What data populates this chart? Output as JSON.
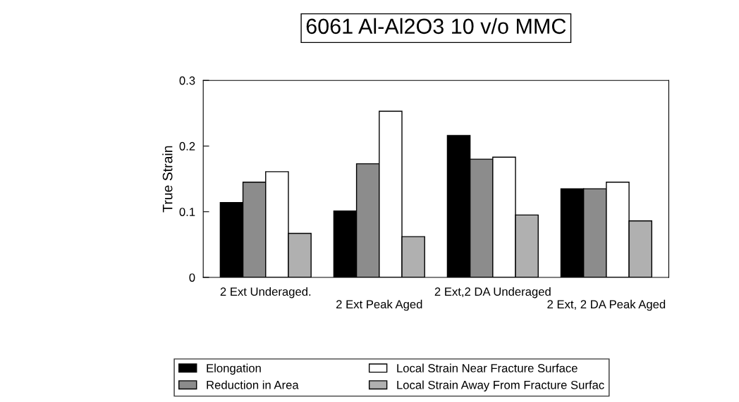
{
  "chart_data": {
    "type": "bar",
    "title": "6061 Al-Al2O3 10 v/o MMC",
    "ylabel": "True Strain",
    "categories": [
      "2 Ext Underaged.",
      "2 Ext Peak Aged",
      "2 Ext,2 DA Underaged",
      "2 Ext, 2 DA Peak Aged"
    ],
    "series": [
      {
        "name": "Elongation",
        "color": "#000000",
        "values": [
          0.114,
          0.101,
          0.216,
          0.135
        ]
      },
      {
        "name": "Reduction in Area",
        "color": "#8c8c8c",
        "values": [
          0.145,
          0.173,
          0.18,
          0.135
        ]
      },
      {
        "name": "Local Strain Near Fracture Surface",
        "color": "#ffffff",
        "values": [
          0.161,
          0.253,
          0.183,
          0.145
        ]
      },
      {
        "name": "Local Strain Away From Fracture Surfac",
        "color": "#b0b0b0",
        "values": [
          0.067,
          0.062,
          0.095,
          0.086
        ]
      }
    ],
    "ylim": [
      0,
      0.3
    ],
    "yticks": [
      0,
      0.1,
      0.2,
      0.3
    ],
    "grid": false,
    "legend": "bottom"
  }
}
